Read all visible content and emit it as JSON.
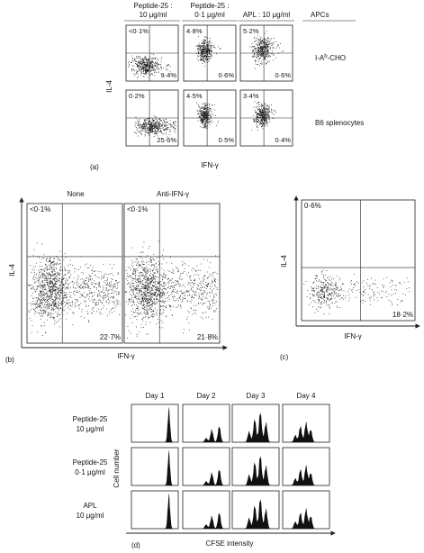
{
  "panel_a": {
    "label": "(a)",
    "column_headers": [
      {
        "line1": "Peptide-25 :",
        "line2": "10 μg/ml"
      },
      {
        "line1": "Peptide-25 :",
        "line2": "0·1 μg/ml"
      },
      {
        "line1": "APL : 10 μg/ml"
      }
    ],
    "apc_header": "APCs",
    "rows": [
      {
        "apc": {
          "base": "I-A",
          "sup": "b",
          "suffix": "-CHO"
        },
        "quadrants": [
          {
            "upper_left": "<0·1%",
            "lower_right": "9·4%"
          },
          {
            "upper_left": "4·8%",
            "lower_right": "0·6%"
          },
          {
            "upper_left": "5·2%",
            "lower_right": "0·6%"
          }
        ]
      },
      {
        "apc": {
          "base": "B6 splenocytes"
        },
        "quadrants": [
          {
            "upper_left": "0·2%",
            "lower_right": "25·6%"
          },
          {
            "upper_left": "4·5%",
            "lower_right": "0·5%"
          },
          {
            "upper_left": "3·4%",
            "lower_right": "0·4%"
          }
        ]
      }
    ],
    "y_axis": "IL-4",
    "x_axis": "IFN-γ"
  },
  "panel_b": {
    "label": "(b)",
    "plots": [
      {
        "title": "None",
        "upper_left": "<0·1%",
        "lower_right": "22·7%"
      },
      {
        "title": "Anti-IFN-γ",
        "upper_left": "<0·1%",
        "lower_right": "21·8%"
      }
    ],
    "y_axis": "IL-4",
    "x_axis": "IFN-γ"
  },
  "panel_c": {
    "label": "(c)",
    "upper_left": "0·6%",
    "lower_right": "18·2%",
    "y_axis": "IL-4",
    "x_axis": "IFN-γ"
  },
  "panel_d": {
    "label": "(d)",
    "days": [
      "Day 1",
      "Day 2",
      "Day 3",
      "Day 4"
    ],
    "conditions": [
      {
        "line1": "Peptide-25",
        "line2": "10 μg/ml"
      },
      {
        "line1": "Peptide-25",
        "line2": "0·1 μg/ml"
      },
      {
        "line1": "APL",
        "line2": "10 μg/ml"
      }
    ],
    "y_axis": "Cell number",
    "x_axis": "CFSE intensity"
  }
}
